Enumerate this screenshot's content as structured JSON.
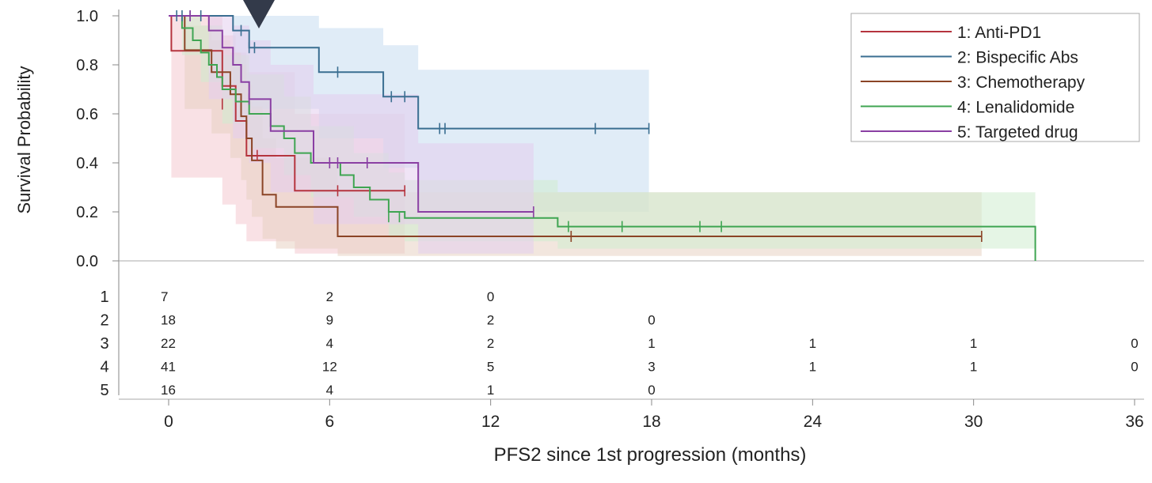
{
  "chart_data": {
    "type": "line",
    "title": "",
    "xlabel": "PFS2 since 1st progression (months)",
    "ylabel": "Survival Probability",
    "xlim": [
      0,
      36
    ],
    "ylim": [
      0,
      1
    ],
    "x_ticks": [
      0,
      6,
      12,
      18,
      24,
      30,
      36
    ],
    "x_tick_labels": [
      "0",
      "6",
      "12",
      "18",
      "24",
      "30",
      "36"
    ],
    "y_ticks": [
      0,
      0.2,
      0.4,
      0.6,
      0.8,
      1.0
    ],
    "y_tick_labels": [
      "0.0",
      "0.2",
      "0.4",
      "0.6",
      "0.8",
      "1.0"
    ],
    "grid": false,
    "legend_position": "top-right",
    "risk_table_times": [
      0,
      6,
      12,
      18,
      24,
      30,
      36
    ],
    "series": [
      {
        "id": "1",
        "name": "1: Anti-PD1",
        "color": "#b5343e",
        "band_color": "#f4c8cf",
        "steps": [
          [
            0,
            1.0
          ],
          [
            0.1,
            0.857
          ],
          [
            2.0,
            0.714
          ],
          [
            2.5,
            0.571
          ],
          [
            2.9,
            0.429
          ],
          [
            4.7,
            0.286
          ],
          [
            8.8,
            0.286
          ]
        ],
        "censors": [
          [
            2.0,
            0.64
          ],
          [
            3.3,
            0.43
          ],
          [
            6.3,
            0.286
          ],
          [
            8.8,
            0.286
          ]
        ],
        "ci": [
          [
            0,
            1.0,
            1.0
          ],
          [
            0.1,
            0.34,
            1.0
          ],
          [
            2.0,
            0.23,
            0.92
          ],
          [
            2.5,
            0.15,
            0.85
          ],
          [
            2.9,
            0.08,
            0.77
          ],
          [
            4.7,
            0.03,
            0.6
          ],
          [
            8.8,
            0.03,
            0.6
          ]
        ],
        "at_risk": [
          "7",
          "2",
          "0",
          "",
          "",
          "",
          ""
        ]
      },
      {
        "id": "2",
        "name": "2: Bispecific Abs",
        "color": "#3a6e91",
        "band_color": "#c6dcf0",
        "steps": [
          [
            0,
            1.0
          ],
          [
            2.4,
            0.94
          ],
          [
            3.0,
            0.87
          ],
          [
            5.6,
            0.77
          ],
          [
            8.0,
            0.67
          ],
          [
            9.3,
            0.54
          ],
          [
            17.9,
            0.54
          ]
        ],
        "censors": [
          [
            0.3,
            1.0
          ],
          [
            0.5,
            1.0
          ],
          [
            0.8,
            1.0
          ],
          [
            1.2,
            1.0
          ],
          [
            2.7,
            0.94
          ],
          [
            3.0,
            0.87
          ],
          [
            3.2,
            0.87
          ],
          [
            6.3,
            0.77
          ],
          [
            8.3,
            0.67
          ],
          [
            8.8,
            0.67
          ],
          [
            10.1,
            0.54
          ],
          [
            10.3,
            0.54
          ],
          [
            15.9,
            0.54
          ],
          [
            17.9,
            0.54
          ]
        ],
        "ci": [
          [
            0,
            1.0,
            1.0
          ],
          [
            2.4,
            0.72,
            1.0
          ],
          [
            3.0,
            0.62,
            1.0
          ],
          [
            5.6,
            0.5,
            0.95
          ],
          [
            8.0,
            0.38,
            0.88
          ],
          [
            9.3,
            0.2,
            0.78
          ],
          [
            17.9,
            0.2,
            0.78
          ]
        ],
        "at_risk": [
          "18",
          "9",
          "2",
          "0",
          "",
          "",
          ""
        ]
      },
      {
        "id": "3",
        "name": "3: Chemotherapy",
        "color": "#8b4426",
        "band_color": "#e8d2c2",
        "steps": [
          [
            0,
            1.0
          ],
          [
            0.6,
            0.86
          ],
          [
            1.6,
            0.77
          ],
          [
            2.3,
            0.68
          ],
          [
            2.7,
            0.59
          ],
          [
            2.9,
            0.5
          ],
          [
            3.1,
            0.41
          ],
          [
            3.5,
            0.27
          ],
          [
            4.0,
            0.22
          ],
          [
            6.3,
            0.1
          ],
          [
            30.3,
            0.1
          ]
        ],
        "censors": [
          [
            15.0,
            0.1
          ],
          [
            30.3,
            0.1
          ]
        ],
        "ci": [
          [
            0,
            1.0,
            1.0
          ],
          [
            0.6,
            0.62,
            0.96
          ],
          [
            1.6,
            0.52,
            0.9
          ],
          [
            2.3,
            0.42,
            0.85
          ],
          [
            2.7,
            0.33,
            0.8
          ],
          [
            2.9,
            0.25,
            0.72
          ],
          [
            3.1,
            0.18,
            0.63
          ],
          [
            3.5,
            0.09,
            0.5
          ],
          [
            4.0,
            0.05,
            0.42
          ],
          [
            6.3,
            0.02,
            0.28
          ],
          [
            30.3,
            0.02,
            0.28
          ]
        ],
        "at_risk": [
          "22",
          "4",
          "2",
          "1",
          "1",
          "1",
          "0"
        ]
      },
      {
        "id": "4",
        "name": "4: Lenalidomide",
        "color": "#3fa552",
        "band_color": "#cfeccf",
        "steps": [
          [
            0,
            1.0
          ],
          [
            0.5,
            0.95
          ],
          [
            0.9,
            0.9
          ],
          [
            1.2,
            0.85
          ],
          [
            1.5,
            0.8
          ],
          [
            1.8,
            0.75
          ],
          [
            2.0,
            0.7
          ],
          [
            2.5,
            0.65
          ],
          [
            3.0,
            0.6
          ],
          [
            3.8,
            0.55
          ],
          [
            4.3,
            0.5
          ],
          [
            4.7,
            0.44
          ],
          [
            5.3,
            0.4
          ],
          [
            6.4,
            0.35
          ],
          [
            6.9,
            0.3
          ],
          [
            7.5,
            0.25
          ],
          [
            8.2,
            0.2
          ],
          [
            8.8,
            0.175
          ],
          [
            14.5,
            0.14
          ],
          [
            32.3,
            0.14
          ],
          [
            32.3,
            0.0
          ]
        ],
        "censors": [
          [
            8.2,
            0.18
          ],
          [
            8.6,
            0.18
          ],
          [
            14.9,
            0.14
          ],
          [
            16.9,
            0.14
          ],
          [
            19.8,
            0.14
          ],
          [
            20.6,
            0.14
          ]
        ],
        "ci": [
          [
            0,
            1.0,
            1.0
          ],
          [
            0.5,
            0.84,
            1.0
          ],
          [
            1.2,
            0.73,
            0.96
          ],
          [
            2.0,
            0.56,
            0.84
          ],
          [
            3.0,
            0.46,
            0.76
          ],
          [
            4.3,
            0.35,
            0.67
          ],
          [
            5.3,
            0.26,
            0.55
          ],
          [
            6.9,
            0.18,
            0.44
          ],
          [
            8.2,
            0.1,
            0.36
          ],
          [
            8.8,
            0.08,
            0.33
          ],
          [
            14.5,
            0.05,
            0.28
          ],
          [
            32.3,
            0.05,
            0.28
          ]
        ],
        "at_risk": [
          "41",
          "12",
          "5",
          "3",
          "1",
          "1",
          "0"
        ]
      },
      {
        "id": "5",
        "name": "5: Targeted drug",
        "color": "#8a3fa3",
        "band_color": "#e4cdee",
        "steps": [
          [
            0,
            1.0
          ],
          [
            1.5,
            0.94
          ],
          [
            2.0,
            0.87
          ],
          [
            2.4,
            0.8
          ],
          [
            2.7,
            0.73
          ],
          [
            3.0,
            0.66
          ],
          [
            3.8,
            0.53
          ],
          [
            5.4,
            0.4
          ],
          [
            9.3,
            0.2
          ],
          [
            13.6,
            0.2
          ]
        ],
        "censors": [
          [
            0.8,
            1.0
          ],
          [
            3.0,
            0.66
          ],
          [
            6.0,
            0.4
          ],
          [
            6.3,
            0.4
          ],
          [
            7.4,
            0.4
          ],
          [
            13.6,
            0.2
          ]
        ],
        "ci": [
          [
            0,
            1.0,
            1.0
          ],
          [
            1.5,
            0.66,
            1.0
          ],
          [
            2.4,
            0.5,
            0.96
          ],
          [
            3.0,
            0.4,
            0.9
          ],
          [
            3.8,
            0.28,
            0.8
          ],
          [
            5.4,
            0.15,
            0.68
          ],
          [
            9.3,
            0.03,
            0.48
          ],
          [
            13.6,
            0.03,
            0.48
          ]
        ],
        "at_risk": [
          "16",
          "4",
          "1",
          "0",
          "",
          "",
          ""
        ]
      }
    ]
  }
}
